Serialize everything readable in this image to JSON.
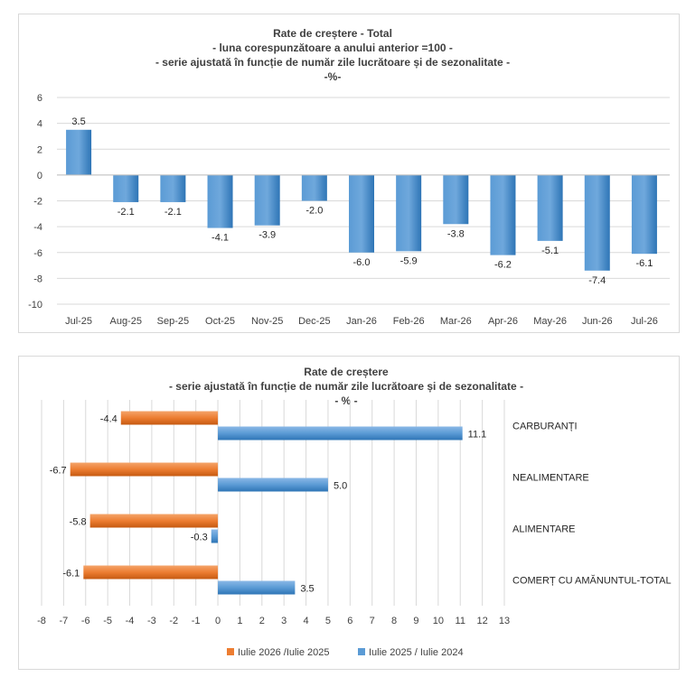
{
  "chart_data": [
    {
      "type": "bar",
      "title": [
        "Rate de creștere - Total",
        "- luna corespunzătoare a anului anterior =100 -",
        "- serie ajustată în funcție de număr zile lucrătoare și de sezonalitate -",
        "-%-"
      ],
      "categories": [
        "Jul-25",
        "Aug-25",
        "Sep-25",
        "Oct-25",
        "Nov-25",
        "Dec-25",
        "Jan-26",
        "Feb-26",
        "Mar-26",
        "Apr-26",
        "May-26",
        "Jun-26",
        "Jul-26"
      ],
      "values": [
        3.5,
        -2.1,
        -2.1,
        -4.1,
        -3.9,
        -2.0,
        -6.0,
        -5.9,
        -3.8,
        -6.2,
        -5.1,
        -7.4,
        -6.1
      ],
      "data_labels": [
        "3.5",
        "-2.1",
        "-2.1",
        "-4.1",
        "-3.9",
        "-2.0",
        "-6.0",
        "-5.9",
        "-3.8",
        "-6.2",
        "-5.1",
        "-7.4",
        "-6.1"
      ],
      "ylim": [
        -10,
        6
      ],
      "yticks": [
        6,
        4,
        2,
        0,
        -2,
        -4,
        -6,
        -8,
        -10
      ],
      "grid": true,
      "colors": {
        "bar": "#5b9bd5",
        "bar_dark": "#2e75b6",
        "grid": "#d9d9d9"
      }
    },
    {
      "type": "bar",
      "orientation": "horizontal",
      "title": [
        "Rate de creștere",
        "- serie ajustată în funcție de număr zile lucrătoare și de sezonalitate -",
        "- % -"
      ],
      "categories": [
        "CARBURANȚI",
        "NEALIMENTARE",
        "ALIMENTARE",
        "COMERȚ CU AMĂNUNTUL-TOTAL"
      ],
      "series": [
        {
          "name": "Iulie 2026 /Iulie  2025",
          "values": [
            -4.4,
            -6.7,
            -5.8,
            -6.1
          ],
          "labels": [
            "-4.4",
            "-6.7",
            "-5.8",
            "-6.1"
          ],
          "color": "#ed7d31"
        },
        {
          "name": "Iulie 2025 / Iulie 2024",
          "values": [
            11.1,
            5.0,
            -0.3,
            3.5
          ],
          "labels": [
            "11.1",
            "5.0",
            "-0.3",
            "3.5"
          ],
          "color": "#5b9bd5"
        }
      ],
      "xlim": [
        -8,
        13
      ],
      "xticks": [
        -8,
        -7,
        -6,
        -5,
        -4,
        -3,
        -2,
        -1,
        0,
        1,
        2,
        3,
        4,
        5,
        6,
        7,
        8,
        9,
        10,
        11,
        12,
        13
      ],
      "grid": true,
      "legend": "bottom"
    }
  ]
}
